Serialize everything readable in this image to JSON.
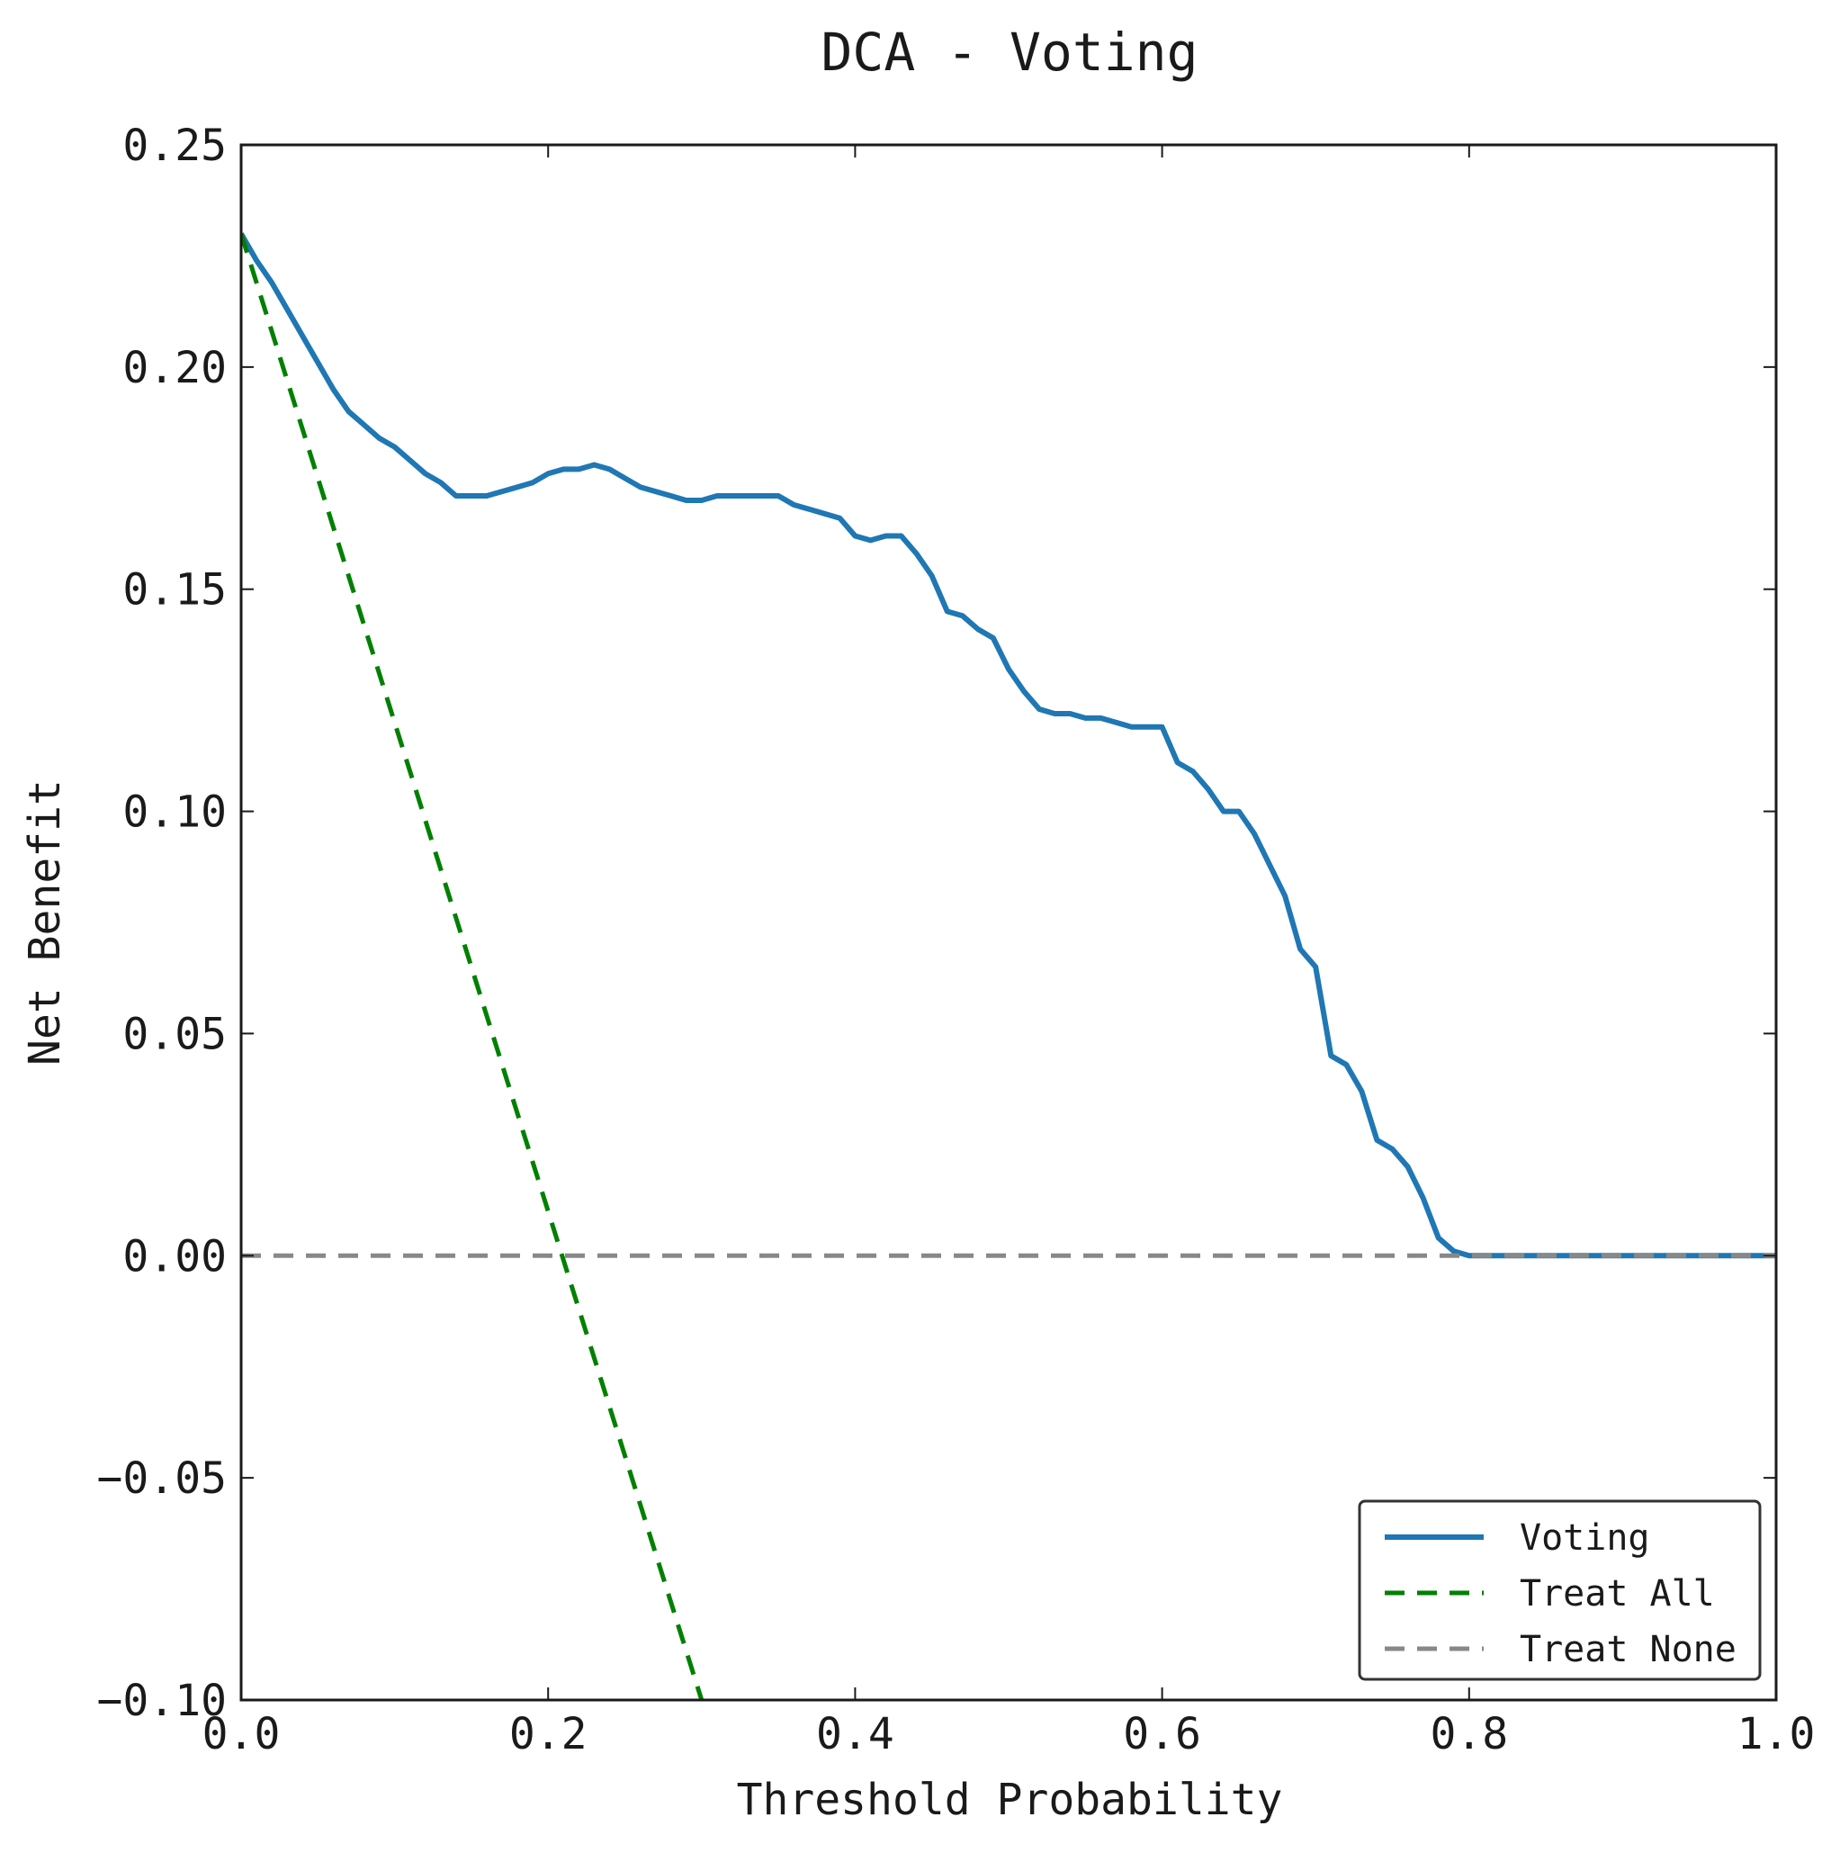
{
  "chart_data": {
    "type": "line",
    "title": "DCA - Voting",
    "xlabel": "Threshold Probability",
    "ylabel": "Net Benefit",
    "xlim": [
      0.0,
      1.0
    ],
    "ylim": [
      -0.1,
      0.25
    ],
    "x_ticks": [
      0.0,
      0.2,
      0.4,
      0.6,
      0.8,
      1.0
    ],
    "x_tick_labels": [
      "0.0",
      "0.2",
      "0.4",
      "0.6",
      "0.8",
      "1.0"
    ],
    "y_ticks": [
      0.25,
      0.2,
      0.15,
      0.1,
      0.05,
      0.0,
      -0.05,
      -0.1
    ],
    "y_tick_labels": [
      "0.25",
      "0.20",
      "0.15",
      "0.10",
      "0.05",
      "0.00",
      "−0.05",
      "−0.10"
    ],
    "grid": false,
    "legend_position": "lower-right",
    "series": [
      {
        "name": "Voting",
        "style": "solid",
        "color": "#1f77b4",
        "x": [
          0.0,
          0.01,
          0.02,
          0.03,
          0.04,
          0.05,
          0.06,
          0.07,
          0.08,
          0.09,
          0.1,
          0.11,
          0.12,
          0.13,
          0.14,
          0.15,
          0.16,
          0.17,
          0.18,
          0.19,
          0.2,
          0.21,
          0.22,
          0.23,
          0.24,
          0.25,
          0.26,
          0.27,
          0.28,
          0.29,
          0.3,
          0.31,
          0.32,
          0.33,
          0.34,
          0.35,
          0.36,
          0.37,
          0.38,
          0.39,
          0.4,
          0.41,
          0.42,
          0.43,
          0.44,
          0.45,
          0.46,
          0.47,
          0.48,
          0.49,
          0.5,
          0.51,
          0.52,
          0.53,
          0.54,
          0.55,
          0.56,
          0.57,
          0.58,
          0.59,
          0.6,
          0.61,
          0.62,
          0.63,
          0.64,
          0.65,
          0.66,
          0.67,
          0.68,
          0.69,
          0.7,
          0.71,
          0.72,
          0.73,
          0.74,
          0.75,
          0.76,
          0.77,
          0.78,
          0.79,
          0.8,
          0.81,
          0.82,
          0.84,
          0.86,
          0.88,
          0.9,
          0.92,
          0.94,
          0.96,
          0.98,
          1.0
        ],
        "y": [
          0.23,
          0.224,
          0.219,
          0.213,
          0.207,
          0.201,
          0.195,
          0.19,
          0.187,
          0.184,
          0.182,
          0.179,
          0.176,
          0.174,
          0.171,
          0.171,
          0.171,
          0.172,
          0.173,
          0.174,
          0.176,
          0.177,
          0.177,
          0.178,
          0.177,
          0.175,
          0.173,
          0.172,
          0.171,
          0.17,
          0.17,
          0.171,
          0.171,
          0.171,
          0.171,
          0.171,
          0.169,
          0.168,
          0.167,
          0.166,
          0.162,
          0.161,
          0.162,
          0.162,
          0.158,
          0.153,
          0.145,
          0.144,
          0.141,
          0.139,
          0.132,
          0.127,
          0.123,
          0.122,
          0.122,
          0.121,
          0.121,
          0.12,
          0.119,
          0.119,
          0.119,
          0.111,
          0.109,
          0.105,
          0.1,
          0.1,
          0.095,
          0.088,
          0.081,
          0.069,
          0.065,
          0.045,
          0.043,
          0.037,
          0.026,
          0.024,
          0.02,
          0.013,
          0.004,
          0.001,
          0.0,
          0.0,
          0.0,
          0.0,
          0.0,
          0.0,
          0.0,
          0.0,
          0.0,
          0.0,
          0.0,
          0.0
        ]
      },
      {
        "name": "Treat All",
        "style": "dashed",
        "color": "#008000",
        "x": [
          0.0,
          0.3
        ],
        "y": [
          0.23,
          -0.1
        ]
      },
      {
        "name": "Treat None",
        "style": "dashed",
        "color": "#888888",
        "x": [
          0.0,
          1.0
        ],
        "y": [
          0.0,
          0.0
        ]
      }
    ]
  }
}
